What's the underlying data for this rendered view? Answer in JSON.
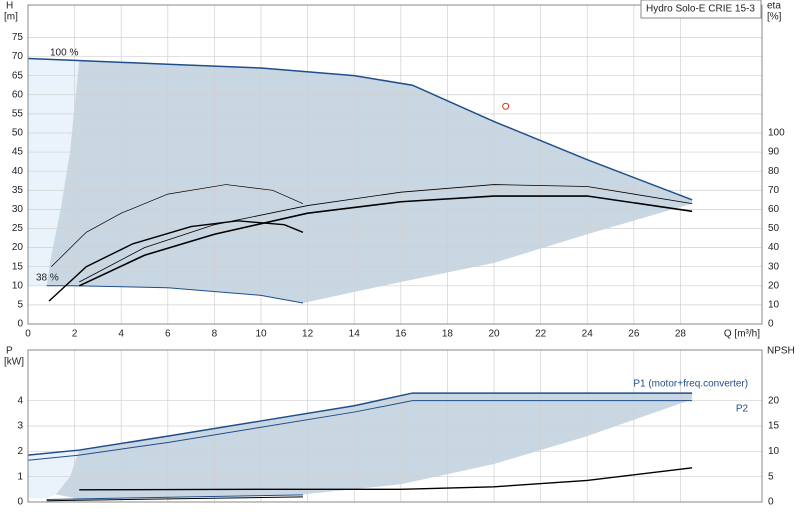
{
  "chart_data": [
    {
      "type": "line",
      "ylabel": "H",
      "yunit": "[m]",
      "y2label": "eta",
      "y2unit": "[%]",
      "xlabel": "Q [m³/h]",
      "legend_title": "Hydro Solo-E CRIE 15-3",
      "xlim": [
        0,
        31.5
      ],
      "xticks": [
        0,
        2,
        4,
        6,
        8,
        10,
        12,
        14,
        16,
        18,
        20,
        22,
        24,
        26,
        28
      ],
      "ylim": [
        0,
        83.5
      ],
      "yticks": [
        0,
        5,
        10,
        15,
        20,
        25,
        30,
        35,
        40,
        45,
        50,
        55,
        60,
        65,
        70,
        75
      ],
      "y2lim": [
        0,
        167
      ],
      "y2ticks": [
        0,
        10,
        20,
        30,
        40,
        50,
        60,
        70,
        80,
        90,
        100
      ],
      "grid": true,
      "annotations": [
        "100 %",
        "38 %"
      ],
      "series": [
        {
          "style": "area",
          "color": "#eaf3fb",
          "x": [
            0,
            2.2,
            1.8,
            1.4,
            1.0,
            0.8,
            0
          ],
          "values": [
            69.5,
            69,
            45,
            30,
            18,
            10,
            10
          ]
        },
        {
          "style": "area",
          "color": "#c9d7e3",
          "x": [
            2.2,
            6,
            10,
            14,
            16.5,
            20,
            24,
            28.5,
            28.5,
            24,
            20,
            16,
            11.8,
            10,
            6,
            2,
            0.8,
            1.0,
            1.4,
            1.8,
            2.2
          ],
          "values": [
            69,
            68,
            67,
            65,
            62.5,
            53,
            43,
            32.5,
            31.5,
            23.5,
            16,
            11,
            5.5,
            7.5,
            9.5,
            10,
            10,
            18,
            30,
            45,
            69
          ]
        },
        {
          "style": "line",
          "color": "#1f4e8c",
          "width": 1.5,
          "x": [
            0,
            2,
            6,
            10,
            14,
            16.5,
            20,
            24,
            28.5
          ],
          "values": [
            69.5,
            69,
            68,
            67,
            65,
            62.5,
            53,
            43,
            32.5
          ]
        },
        {
          "style": "line",
          "color": "#1f4e8c",
          "width": 1,
          "x": [
            0.8,
            2,
            6,
            10,
            11.8
          ],
          "values": [
            10,
            10,
            9.5,
            7.5,
            5.5
          ]
        },
        {
          "style": "line",
          "color": "#000000",
          "width": 1.6,
          "axis": "y2",
          "x": [
            2.2,
            5,
            8,
            12,
            16,
            20,
            24,
            28.5
          ],
          "values": [
            20,
            36,
            47,
            58,
            64,
            67,
            67,
            59
          ]
        },
        {
          "style": "line",
          "color": "#000000",
          "width": 0.8,
          "axis": "y2",
          "x": [
            2.2,
            5,
            8,
            12,
            16,
            20,
            24,
            28.5
          ],
          "values": [
            22,
            40,
            52,
            62,
            69,
            73,
            72,
            63
          ]
        },
        {
          "style": "line",
          "color": "#000000",
          "width": 0.7,
          "axis": "y2",
          "x": [
            1,
            2.5,
            4,
            6,
            8.5,
            10.5,
            11.8
          ],
          "values": [
            30,
            48,
            58,
            68,
            73,
            70,
            63
          ]
        },
        {
          "style": "line",
          "color": "#000000",
          "width": 1.4,
          "axis": "y2",
          "x": [
            0.9,
            2.5,
            4.5,
            7,
            9,
            11,
            11.8
          ],
          "values": [
            12,
            30,
            42,
            51,
            54,
            52,
            48
          ]
        },
        {
          "style": "point",
          "color": "#e03020",
          "x": [
            20.5
          ],
          "values": [
            57
          ]
        }
      ]
    },
    {
      "type": "line",
      "ylabel": "P",
      "yunit": "[kW]",
      "y2label": "NPSH",
      "xlim": [
        0,
        31.5
      ],
      "xticks": [
        0,
        2,
        4,
        6,
        8,
        10,
        12,
        14,
        16,
        18,
        20,
        22,
        24,
        26,
        28
      ],
      "ylim": [
        0,
        6
      ],
      "yticks": [
        0,
        1,
        2,
        3,
        4
      ],
      "y2lim": [
        0,
        30
      ],
      "y2ticks": [
        0,
        5,
        10,
        15,
        20
      ],
      "grid": true,
      "series": [
        {
          "style": "area",
          "color": "#eaf3fb",
          "x": [
            0,
            2.2,
            1.8,
            1.2,
            0.8,
            0
          ],
          "values": [
            1.85,
            2.05,
            1.0,
            0.3,
            0.15,
            0.15
          ]
        },
        {
          "style": "area",
          "color": "#c9d7e3",
          "x": [
            2.2,
            6,
            10,
            14,
            16.5,
            28.5,
            28.5,
            24,
            20,
            16,
            11.8,
            2.2,
            1.2,
            1.8,
            2.2
          ],
          "values": [
            2.05,
            2.6,
            3.2,
            3.8,
            4.3,
            4.3,
            4.05,
            2.6,
            1.5,
            0.7,
            0.3,
            0.12,
            0.3,
            1.0,
            2.05
          ]
        },
        {
          "style": "line",
          "name": "P1 (motor+freq.converter)",
          "color": "#1f4e8c",
          "width": 1.5,
          "x": [
            0,
            2.2,
            6,
            10,
            14,
            16.5,
            28.5
          ],
          "values": [
            1.85,
            2.05,
            2.6,
            3.2,
            3.8,
            4.3,
            4.3
          ]
        },
        {
          "style": "line",
          "name": "P2",
          "color": "#1f4e8c",
          "width": 1,
          "x": [
            0,
            2.2,
            6,
            10,
            14,
            16.5,
            28.5
          ],
          "values": [
            1.65,
            1.85,
            2.35,
            2.95,
            3.55,
            4.0,
            4.0
          ]
        },
        {
          "style": "line",
          "color": "#1f4e8c",
          "width": 1,
          "x": [
            0.8,
            11.8
          ],
          "values": [
            0.1,
            0.28
          ]
        },
        {
          "style": "line",
          "color": "#000000",
          "width": 1,
          "x": [
            0.8,
            11.8
          ],
          "values": [
            0.05,
            0.2
          ]
        },
        {
          "style": "line",
          "color": "#000000",
          "width": 1.4,
          "axis": "y2",
          "x": [
            2.2,
            10,
            16,
            20,
            24,
            28.5
          ],
          "values": [
            2.4,
            2.5,
            2.5,
            3,
            4.25,
            6.75
          ]
        }
      ]
    }
  ]
}
